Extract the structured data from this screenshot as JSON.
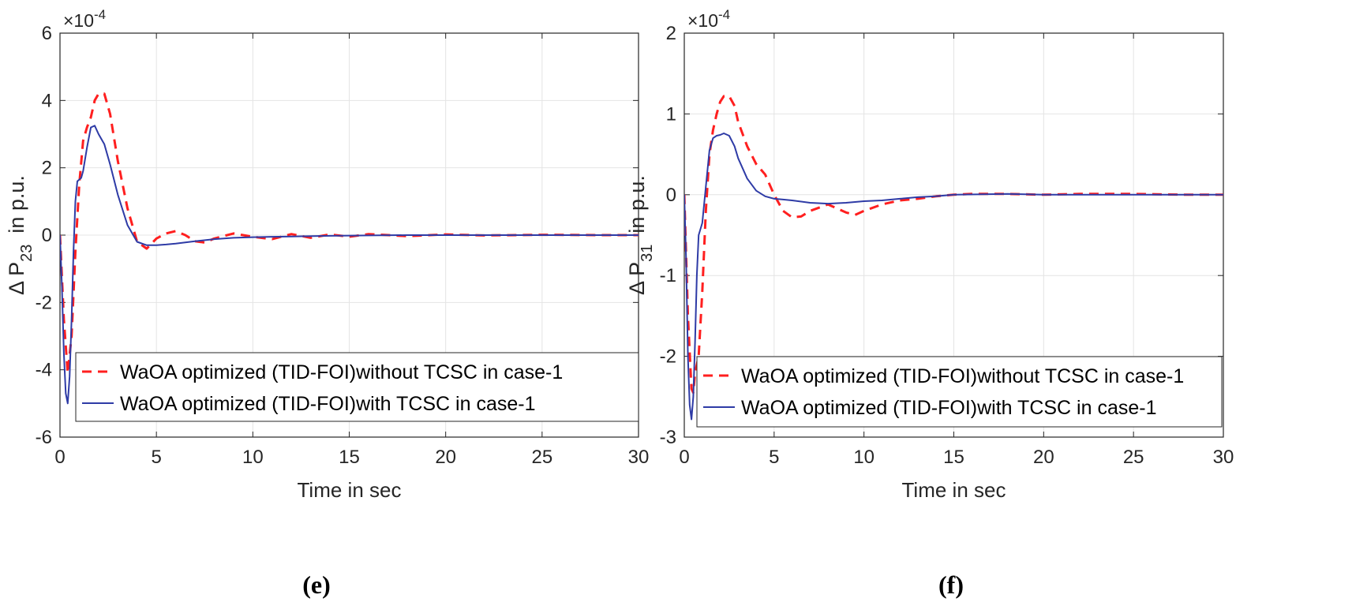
{
  "chart_data": [
    {
      "type": "line",
      "panel_label": "(e)",
      "ylabel_main": "Δ P",
      "ylabel_sub": "23",
      "ylabel_unit": "in p.u.",
      "xlabel": "Time in sec",
      "exponent_base": "×10",
      "exponent_power": "-4",
      "xlim": [
        0,
        30
      ],
      "ylim": [
        -6,
        6
      ],
      "xticks": [
        "0",
        "5",
        "10",
        "15",
        "20",
        "25",
        "30"
      ],
      "yticks": [
        "-6",
        "-4",
        "-2",
        "0",
        "2",
        "4",
        "6"
      ],
      "grid": true,
      "legend_position": "lower-right",
      "series": [
        {
          "name": "WaOA optimized (TID-FOI)without TCSC in case-1",
          "color": "#ff1f1f",
          "style": "dashed",
          "x": [
            0,
            0.2,
            0.4,
            0.6,
            0.8,
            1.0,
            1.2,
            1.4,
            1.6,
            1.8,
            2.0,
            2.3,
            2.6,
            3.0,
            3.5,
            4.0,
            4.5,
            5.0,
            5.5,
            6.0,
            6.5,
            7.0,
            7.5,
            8.0,
            9.0,
            10.0,
            11.0,
            12.0,
            13.0,
            14.0,
            15.0,
            16.0,
            18.0,
            20.0,
            22.0,
            25.0,
            28.0,
            30.0
          ],
          "values": [
            0,
            -2.5,
            -4.1,
            -3.0,
            -0.5,
            1.5,
            2.8,
            3.2,
            3.5,
            4.0,
            4.2,
            4.2,
            3.6,
            2.2,
            0.8,
            -0.2,
            -0.4,
            -0.1,
            0.05,
            0.12,
            0.0,
            -0.18,
            -0.22,
            -0.1,
            0.05,
            -0.05,
            -0.12,
            0.03,
            -0.08,
            0.02,
            -0.05,
            0.03,
            -0.03,
            0.02,
            -0.01,
            0.01,
            0.0,
            0.0
          ]
        },
        {
          "name": "WaOA optimized  (TID-FOI)with TCSC in case-1",
          "color": "#2e3ba6",
          "style": "solid",
          "x": [
            0,
            0.1,
            0.2,
            0.3,
            0.4,
            0.5,
            0.6,
            0.7,
            0.8,
            0.9,
            1.0,
            1.1,
            1.2,
            1.4,
            1.6,
            1.8,
            2.0,
            2.3,
            2.6,
            3.0,
            3.5,
            4.0,
            4.5,
            5.0,
            5.5,
            6.0,
            7.0,
            8.0,
            9.0,
            10.0,
            11.0,
            12.0,
            14.0,
            16.0,
            18.0,
            20.0,
            25.0,
            30.0
          ],
          "values": [
            0,
            -1.5,
            -3.5,
            -4.7,
            -5.0,
            -4.2,
            -2.5,
            -0.5,
            1.0,
            1.6,
            1.65,
            1.7,
            1.9,
            2.6,
            3.2,
            3.25,
            3.0,
            2.7,
            2.1,
            1.2,
            0.3,
            -0.2,
            -0.3,
            -0.3,
            -0.28,
            -0.25,
            -0.18,
            -0.12,
            -0.08,
            -0.06,
            -0.05,
            -0.04,
            -0.02,
            -0.01,
            0.0,
            0.0,
            0.0,
            0.0
          ]
        }
      ]
    },
    {
      "type": "line",
      "panel_label": "(f)",
      "ylabel_main": "Δ P",
      "ylabel_sub": "31",
      "ylabel_unit": "in p.u.",
      "xlabel": "Time in sec",
      "exponent_base": "×10",
      "exponent_power": "-4",
      "xlim": [
        0,
        30
      ],
      "ylim": [
        -3,
        2
      ],
      "xticks": [
        "0",
        "5",
        "10",
        "15",
        "20",
        "25",
        "30"
      ],
      "yticks": [
        "-3",
        "-2",
        "-1",
        "0",
        "1",
        "2"
      ],
      "grid": true,
      "legend_position": "lower-right",
      "series": [
        {
          "name": "WaOA optimized (TID-FOI)without TCSC in case-1",
          "color": "#ff1f1f",
          "style": "dashed",
          "x": [
            0,
            0.2,
            0.4,
            0.5,
            0.6,
            0.8,
            1.0,
            1.2,
            1.4,
            1.6,
            1.8,
            2.0,
            2.2,
            2.5,
            2.8,
            3.0,
            3.5,
            4.0,
            4.5,
            5.0,
            5.5,
            6.0,
            6.5,
            7.0,
            8.0,
            9.0,
            9.5,
            10.0,
            11.0,
            12.0,
            13.0,
            14.0,
            15.0,
            16.0,
            18.0,
            20.0,
            22.0,
            25.0,
            28.0,
            30.0
          ],
          "values": [
            0,
            -1.5,
            -2.4,
            -2.45,
            -2.2,
            -2.0,
            -1.2,
            -0.2,
            0.5,
            0.8,
            1.0,
            1.15,
            1.22,
            1.22,
            1.1,
            0.9,
            0.6,
            0.38,
            0.25,
            0.0,
            -0.2,
            -0.28,
            -0.27,
            -0.2,
            -0.12,
            -0.22,
            -0.25,
            -0.2,
            -0.12,
            -0.07,
            -0.05,
            -0.02,
            0.0,
            0.01,
            0.01,
            0.0,
            0.01,
            0.01,
            0.0,
            0.0
          ]
        },
        {
          "name": "WaOA optimized  (TID-FOI)with TCSC in case-1",
          "color": "#2e3ba6",
          "style": "solid",
          "x": [
            0,
            0.1,
            0.2,
            0.3,
            0.4,
            0.5,
            0.6,
            0.7,
            0.8,
            1.0,
            1.2,
            1.4,
            1.6,
            1.8,
            2.0,
            2.2,
            2.5,
            2.8,
            3.0,
            3.5,
            4.0,
            4.5,
            5.0,
            5.5,
            6.0,
            7.0,
            8.0,
            9.0,
            10.0,
            11.0,
            12.0,
            13.0,
            14.0,
            15.0,
            18.0,
            20.0,
            25.0,
            30.0
          ],
          "values": [
            0,
            -0.8,
            -2.0,
            -2.6,
            -2.78,
            -2.5,
            -1.8,
            -1.0,
            -0.5,
            -0.35,
            0.1,
            0.55,
            0.7,
            0.73,
            0.74,
            0.76,
            0.73,
            0.6,
            0.45,
            0.2,
            0.05,
            -0.02,
            -0.05,
            -0.06,
            -0.07,
            -0.1,
            -0.11,
            -0.1,
            -0.08,
            -0.07,
            -0.05,
            -0.03,
            -0.02,
            0.0,
            0.01,
            0.0,
            0.0,
            0.0
          ]
        }
      ]
    }
  ]
}
